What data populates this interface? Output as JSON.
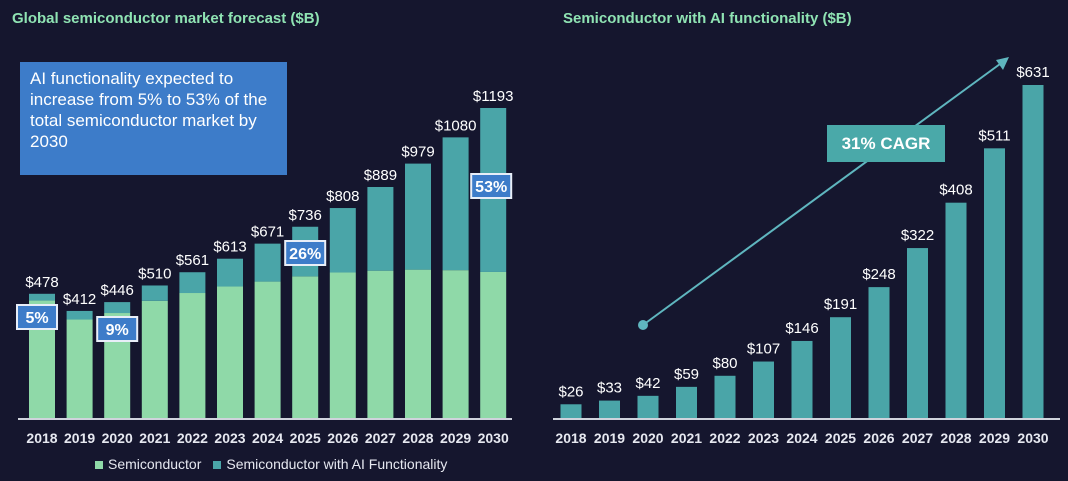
{
  "colors": {
    "background": "#15162e",
    "semiconductor": "#8fd9a8",
    "ai": "#4aa5a8",
    "title": "#8fe3b3",
    "note_box": "#3d7cc9",
    "badge": "#3d7cc9"
  },
  "chart_data": [
    {
      "type": "bar",
      "stacked": true,
      "title": "Global semiconductor market forecast ($B)",
      "categories": [
        "2018",
        "2019",
        "2020",
        "2021",
        "2022",
        "2023",
        "2024",
        "2025",
        "2026",
        "2027",
        "2028",
        "2029",
        "2030"
      ],
      "totals": [
        478,
        412,
        446,
        510,
        561,
        613,
        671,
        736,
        808,
        889,
        979,
        1080,
        1193
      ],
      "total_labels": [
        "$478",
        "$412",
        "$446",
        "$510",
        "$561",
        "$613",
        "$671",
        "$736",
        "$808",
        "$889",
        "$979",
        "$1080",
        "$1193"
      ],
      "series": [
        {
          "name": "Semiconductor",
          "values": [
            452,
            379,
            404,
            451,
            481,
            506,
            525,
            545,
            560,
            567,
            571,
            569,
            562
          ]
        },
        {
          "name": "Semiconductor with AI Functionality",
          "values": [
            26,
            33,
            42,
            59,
            80,
            107,
            146,
            191,
            248,
            322,
            408,
            511,
            631
          ]
        }
      ],
      "annotations": [
        {
          "category": "2018",
          "text": "5%"
        },
        {
          "category": "2020",
          "text": "9%"
        },
        {
          "category": "2025",
          "text": "26%"
        },
        {
          "category": "2030",
          "text": "53%"
        }
      ],
      "note": "AI functionality expected to increase from 5% to 53% of the total semiconductor market by 2030",
      "legend": "bottom",
      "grid": false
    },
    {
      "type": "bar",
      "title": "Semiconductor with AI functionality ($B)",
      "categories": [
        "2018",
        "2019",
        "2020",
        "2021",
        "2022",
        "2023",
        "2024",
        "2025",
        "2026",
        "2027",
        "2028",
        "2029",
        "2030"
      ],
      "values": [
        26,
        33,
        42,
        59,
        80,
        107,
        146,
        191,
        248,
        322,
        408,
        511,
        631
      ],
      "value_labels": [
        "$26",
        "$33",
        "$42",
        "$59",
        "$80",
        "$107",
        "$146",
        "$191",
        "$248",
        "$322",
        "$408",
        "$511",
        "$631"
      ],
      "annotation": "31% CAGR",
      "grid": false
    }
  ]
}
